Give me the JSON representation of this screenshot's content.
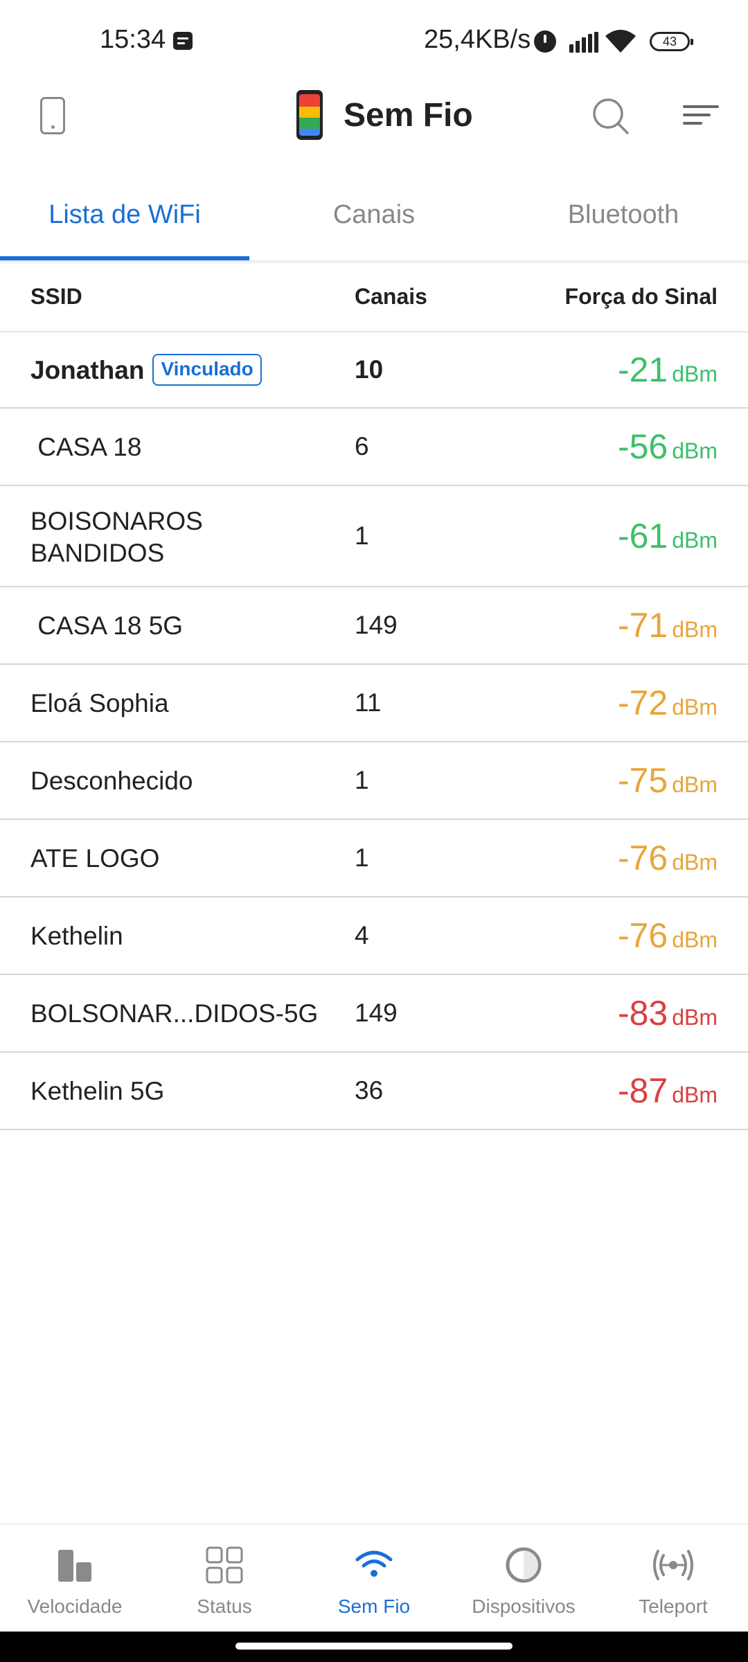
{
  "status_bar": {
    "time": "15:34",
    "net_speed": "25,4KB/s",
    "battery": "43"
  },
  "app_bar": {
    "title": "Sem Fio"
  },
  "tabs": [
    {
      "label": "Lista de WiFi",
      "active": true
    },
    {
      "label": "Canais",
      "active": false
    },
    {
      "label": "Bluetooth",
      "active": false
    }
  ],
  "table": {
    "headers": {
      "ssid": "SSID",
      "channel": "Canais",
      "signal": "Força do Sinal"
    },
    "linked_badge": "Vinculado",
    "unit": "dBm",
    "rows": [
      {
        "ssid": "Jonathan",
        "channel": "10",
        "signal": "-21",
        "linked": true,
        "level": "good"
      },
      {
        "ssid": " CASA 18",
        "channel": "6",
        "signal": "-56",
        "linked": false,
        "level": "good"
      },
      {
        "ssid": "BOISONAROS BANDIDOS",
        "channel": "1",
        "signal": "-61",
        "linked": false,
        "level": "good"
      },
      {
        "ssid": " CASA 18 5G",
        "channel": "149",
        "signal": "-71",
        "linked": false,
        "level": "fair"
      },
      {
        "ssid": "Eloá Sophia",
        "channel": "11",
        "signal": "-72",
        "linked": false,
        "level": "fair"
      },
      {
        "ssid": "Desconhecido",
        "channel": "1",
        "signal": "-75",
        "linked": false,
        "level": "fair"
      },
      {
        "ssid": "ATE LOGO",
        "channel": "1",
        "signal": "-76",
        "linked": false,
        "level": "fair"
      },
      {
        "ssid": "Kethelin",
        "channel": "4",
        "signal": "-76",
        "linked": false,
        "level": "fair"
      },
      {
        "ssid": "BOLSONAR...DIDOS-5G",
        "channel": "149",
        "signal": "-83",
        "linked": false,
        "level": "poor"
      },
      {
        "ssid": "Kethelin 5G",
        "channel": "36",
        "signal": "-87",
        "linked": false,
        "level": "poor"
      }
    ]
  },
  "signal_colors": {
    "good": "#3cbf6a",
    "fair": "#e8a53a",
    "poor": "#d94040"
  },
  "accent_color": "#1a6fd4",
  "bottom_nav": [
    {
      "label": "Velocidade",
      "icon": "speed-bars-icon",
      "active": false
    },
    {
      "label": "Status",
      "icon": "grid-icon",
      "active": false
    },
    {
      "label": "Sem Fio",
      "icon": "wifi-icon",
      "active": true
    },
    {
      "label": "Dispositivos",
      "icon": "devices-circle-icon",
      "active": false
    },
    {
      "label": "Teleport",
      "icon": "teleport-icon",
      "active": false
    }
  ]
}
